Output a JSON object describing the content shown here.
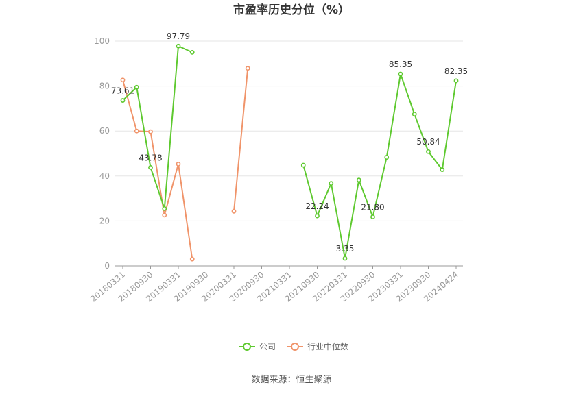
{
  "chart_data": {
    "type": "line",
    "title": "市盈率历史分位（%）",
    "source": "数据来源：恒生聚源",
    "ylim": [
      0,
      100
    ],
    "yticks": [
      0,
      20,
      40,
      60,
      80,
      100
    ],
    "x_tick_labels": [
      "20180331",
      "20180930",
      "20190331",
      "20190930",
      "20200331",
      "20200930",
      "20210331",
      "20210930",
      "20220331",
      "20220930",
      "20230331",
      "20230930",
      "20240424"
    ],
    "x": [
      "20180331",
      "20180630",
      "20180930",
      "20181231",
      "20190331",
      "20190630",
      "20190930",
      "20191231",
      "20200331",
      "20200630",
      "20200930",
      "20201231",
      "20210331",
      "20210630",
      "20210930",
      "20211231",
      "20220331",
      "20220630",
      "20220930",
      "20221231",
      "20230331",
      "20230630",
      "20230930",
      "20231231",
      "20240424"
    ],
    "series": [
      {
        "name": "公司",
        "color": "#5ec92f",
        "values": [
          73.61,
          79.5,
          43.78,
          25.5,
          97.79,
          95,
          null,
          null,
          null,
          null,
          null,
          null,
          null,
          44.8,
          22.24,
          36.7,
          3.35,
          38.2,
          21.8,
          48.3,
          85.35,
          67.5,
          50.84,
          42.8,
          82.35
        ],
        "labels": {
          "0": "73.61",
          "2": "43.78",
          "4": "97.79",
          "14": "22.24",
          "16": "3.35",
          "18": "21.80",
          "20": "85.35",
          "22": "50.84",
          "24": "82.35"
        }
      },
      {
        "name": "行业中位数",
        "color": "#f0946a",
        "values": [
          82.7,
          60.0,
          59.7,
          22.6,
          45.3,
          3.0,
          null,
          null,
          24.3,
          87.9,
          null,
          null,
          null,
          null,
          null,
          null,
          null,
          null,
          null,
          null,
          null,
          null,
          null,
          null,
          null
        ]
      }
    ],
    "legend": "bottom-center",
    "grid": true
  }
}
